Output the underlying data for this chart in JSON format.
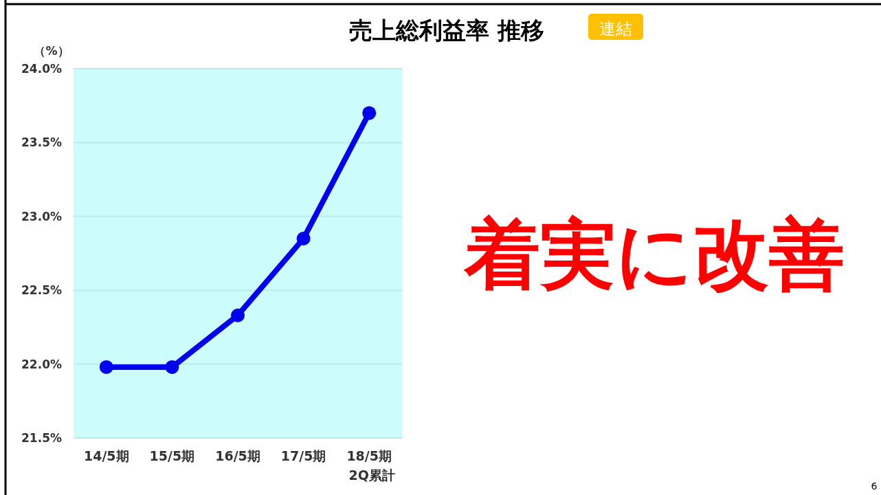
{
  "chart_data": {
    "type": "line",
    "title": "売上総利益率 推移",
    "ylabel": "（%）",
    "categories": [
      "14/5期",
      "15/5期",
      "16/5期",
      "17/5期",
      "18/5期\n2Q累計"
    ],
    "series": [
      {
        "color": "#0000ee",
        "values": [
          21.98,
          21.98,
          22.33,
          22.85,
          23.7
        ]
      }
    ],
    "ylim": [
      21.5,
      24.0
    ],
    "yticks": [
      {
        "value": 21.5,
        "label": "21.5%"
      },
      {
        "value": 22.0,
        "label": "22.0%"
      },
      {
        "value": 22.5,
        "label": "22.5%"
      },
      {
        "value": 23.0,
        "label": "23.0%"
      },
      {
        "value": 23.5,
        "label": "23.5%"
      },
      {
        "value": 24.0,
        "label": "24.0%"
      }
    ],
    "grid": "y",
    "marker": "circle",
    "line_style": "solid",
    "annotations": [
      "連結",
      "着実に改善",
      "6"
    ]
  }
}
